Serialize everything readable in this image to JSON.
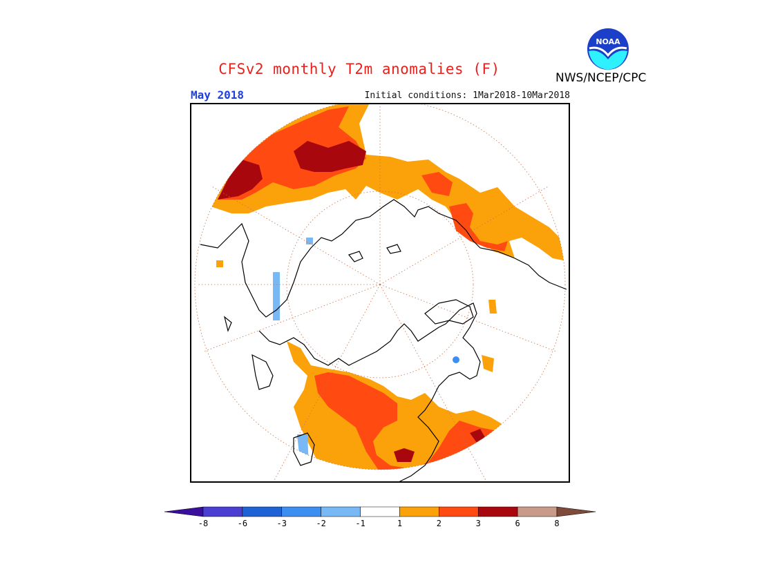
{
  "header": {
    "title": "CFSv2 monthly T2m anomalies (F)",
    "month": "May 2018",
    "initial_conditions": "Initial conditions: 1Mar2018-10Mar2018",
    "agency": "NWS/NCEP/CPC",
    "logo_text": "NOAA"
  },
  "map": {
    "projection": "polar stereographic (north pole)",
    "boundary": "circle",
    "frame_color": "#000000"
  },
  "colorbar": {
    "bins": [
      {
        "label": "-8",
        "color": "#3a0f9c"
      },
      {
        "label": "-6",
        "color": "#4b3fd2"
      },
      {
        "label": "-3",
        "color": "#1f62d6"
      },
      {
        "label": "-2",
        "color": "#3c8ff0"
      },
      {
        "label": "-1",
        "color": "#78b8f5"
      },
      {
        "label": "1",
        "color": "#ffffff"
      },
      {
        "label": "2",
        "color": "#fba20b"
      },
      {
        "label": "3",
        "color": "#ff4a12"
      },
      {
        "label": "6",
        "color": "#a8070e"
      },
      {
        "label": "8",
        "color": "#c89a8a"
      },
      {
        "label": "",
        "color": "#7e4a3a"
      }
    ]
  },
  "colors": {
    "warm1": "#fba20b",
    "warm2": "#ff4a12",
    "warm3": "#a8070e",
    "cool1": "#78b8f5",
    "cool2": "#3c8ff0",
    "title": "#e8201c",
    "month": "#1f3fe0"
  }
}
